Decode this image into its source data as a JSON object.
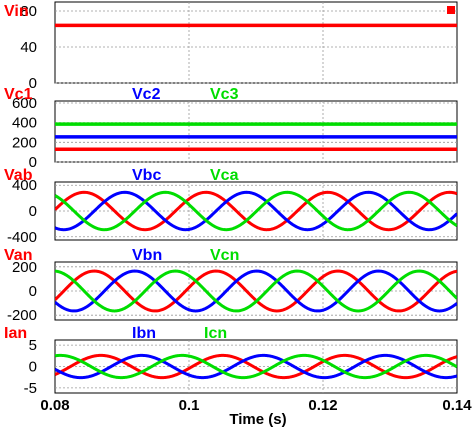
{
  "chart_data": [
    {
      "type": "line",
      "legend": [
        "Vin"
      ],
      "yticks": [
        0,
        40,
        80
      ],
      "ylim": [
        0,
        90
      ],
      "xlim": [
        0.08,
        0.14
      ],
      "grid": true,
      "marker": "small red square, top-right",
      "series": [
        {
          "name": "Vin",
          "color": "#ff0000",
          "kind": "constant",
          "value": 64
        }
      ]
    },
    {
      "type": "line",
      "legend": [
        "Vc1",
        "Vc2",
        "Vc3"
      ],
      "yticks": [
        0,
        200,
        400,
        600
      ],
      "ylim": [
        0,
        620
      ],
      "xlim": [
        0.08,
        0.14
      ],
      "grid": true,
      "series": [
        {
          "name": "Vc1",
          "color": "#ff0000",
          "kind": "constant",
          "value": 130
        },
        {
          "name": "Vc2",
          "color": "#0000ff",
          "kind": "constant",
          "value": 255
        },
        {
          "name": "Vc3",
          "color": "#00dd00",
          "kind": "constant",
          "value": 385
        }
      ]
    },
    {
      "type": "line",
      "legend": [
        "Vab",
        "Vbc",
        "Vca"
      ],
      "yticks": [
        -400,
        0,
        400
      ],
      "ylim": [
        -450,
        450
      ],
      "xlim": [
        0.08,
        0.14
      ],
      "grid": true,
      "series": [
        {
          "name": "Vab",
          "color": "#ff0000",
          "kind": "sine",
          "amplitude": 290,
          "frequency_hz": 55,
          "phase_deg": 220
        },
        {
          "name": "Vbc",
          "color": "#0000ff",
          "kind": "sine",
          "amplitude": 290,
          "frequency_hz": 55,
          "phase_deg": 100
        },
        {
          "name": "Vca",
          "color": "#00dd00",
          "kind": "sine",
          "amplitude": 290,
          "frequency_hz": 55,
          "phase_deg": 340
        }
      ]
    },
    {
      "type": "line",
      "legend": [
        "Van",
        "Vbn",
        "Vcn"
      ],
      "yticks": [
        -200,
        0,
        200
      ],
      "ylim": [
        -240,
        240
      ],
      "xlim": [
        0.08,
        0.14
      ],
      "grid": true,
      "series": [
        {
          "name": "Van",
          "color": "#ff0000",
          "kind": "sine",
          "amplitude": 165,
          "frequency_hz": 55,
          "phase_deg": 190
        },
        {
          "name": "Vbn",
          "color": "#0000ff",
          "kind": "sine",
          "amplitude": 165,
          "frequency_hz": 55,
          "phase_deg": 70
        },
        {
          "name": "Vcn",
          "color": "#00dd00",
          "kind": "sine",
          "amplitude": 165,
          "frequency_hz": 55,
          "phase_deg": 310
        }
      ]
    },
    {
      "type": "line",
      "legend": [
        "Ian",
        "Ibn",
        "Icn"
      ],
      "yticks": [
        -5,
        0,
        5
      ],
      "ylim": [
        -6.2,
        6.2
      ],
      "xlim": [
        0.08,
        0.14
      ],
      "grid": true,
      "series": [
        {
          "name": "Ian",
          "color": "#ff0000",
          "kind": "sine",
          "amplitude": 2.6,
          "frequency_hz": 55,
          "phase_deg": 170
        },
        {
          "name": "Ibn",
          "color": "#0000ff",
          "kind": "sine",
          "amplitude": 2.6,
          "frequency_hz": 55,
          "phase_deg": 50
        },
        {
          "name": "Icn",
          "color": "#00dd00",
          "kind": "sine",
          "amplitude": 2.6,
          "frequency_hz": 55,
          "phase_deg": 290
        }
      ]
    }
  ],
  "x_axis": {
    "label": "Time (s)",
    "ticks": [
      0.08,
      0.1,
      0.12,
      0.14
    ],
    "tick_labels": [
      "0.08",
      "0.1",
      "0.12",
      "0.14"
    ]
  },
  "colors": {
    "red": "#ff0000",
    "blue": "#0000ff",
    "green": "#00dd00",
    "grid": "#999999"
  }
}
